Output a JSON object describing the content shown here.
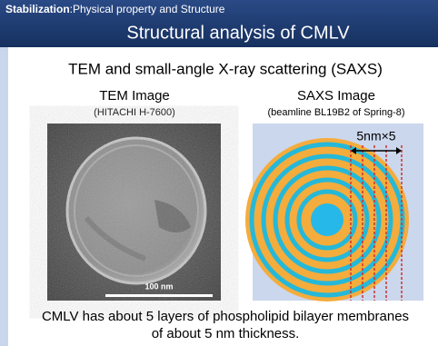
{
  "header": {
    "label_bold": "Stabilization",
    "label_rest": ":Physical property and Structure",
    "title": "Structural analysis of CMLV"
  },
  "subtitle": "TEM and small-angle X-ray scattering (SAXS)",
  "tem": {
    "title": "TEM Image",
    "caption": "(HITACHI  H-7600)",
    "scale_label": "100 nm"
  },
  "saxs": {
    "title": "SAXS Image",
    "caption": "(beamline BL19B2 of Spring-8)",
    "annotation": "5nm×5"
  },
  "conclusion": [
    "CMLV has about 5 layers of phospholipid bilayer membranes",
    "of about 5 nm thickness."
  ]
}
